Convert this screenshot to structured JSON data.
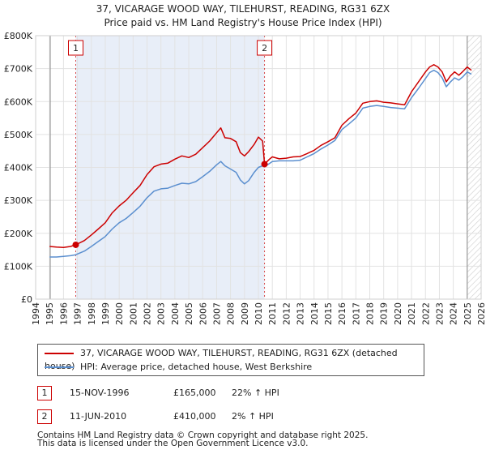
{
  "title_line1": "37, VICARAGE WOOD WAY, TILEHURST, READING, RG31 6ZX",
  "title_line2": "Price paid vs. HM Land Registry's House Price Index (HPI)",
  "chart_data": {
    "type": "line",
    "title": "37, VICARAGE WOOD WAY, TILEHURST, READING, RG31 6ZX — Price paid vs. HM Land Registry's House Price Index (HPI)",
    "xlabel": "",
    "ylabel": "",
    "xlim": [
      1994,
      2026
    ],
    "ylim": [
      0,
      800000
    ],
    "y_ticks": [
      0,
      100000,
      200000,
      300000,
      400000,
      500000,
      600000,
      700000,
      800000
    ],
    "y_tick_labels": [
      "£0",
      "£100K",
      "£200K",
      "£300K",
      "£400K",
      "£500K",
      "£600K",
      "£700K",
      "£800K"
    ],
    "x_ticks": [
      1994,
      1995,
      1996,
      1997,
      1998,
      1999,
      2000,
      2001,
      2002,
      2003,
      2004,
      2005,
      2006,
      2007,
      2008,
      2009,
      2010,
      2011,
      2012,
      2013,
      2014,
      2015,
      2016,
      2017,
      2018,
      2019,
      2020,
      2021,
      2022,
      2023,
      2024,
      2025,
      2026
    ],
    "grid": true,
    "legend_position": "below",
    "colors": {
      "property": "#cc0000",
      "hpi": "#5b8fcf",
      "highlight": "#e8eef8",
      "marker_line": "#cc0000"
    },
    "series": [
      {
        "name": "37, VICARAGE WOOD WAY, TILEHURST, READING, RG31 6ZX (detached house)",
        "x": [
          1995.0,
          1995.5,
          1996.0,
          1996.5,
          1996.88,
          1997.5,
          1998.0,
          1998.5,
          1999.0,
          1999.5,
          2000.0,
          2000.5,
          2001.0,
          2001.5,
          2002.0,
          2002.5,
          2003.0,
          2003.5,
          2004.0,
          2004.5,
          2005.0,
          2005.5,
          2006.0,
          2006.5,
          2007.0,
          2007.3,
          2007.6,
          2008.0,
          2008.4,
          2008.7,
          2009.0,
          2009.3,
          2009.7,
          2010.0,
          2010.3,
          2010.44,
          2010.8,
          2011.0,
          2011.5,
          2012.0,
          2012.5,
          2013.0,
          2013.5,
          2014.0,
          2014.5,
          2015.0,
          2015.5,
          2016.0,
          2016.5,
          2017.0,
          2017.5,
          2018.0,
          2018.5,
          2019.0,
          2019.5,
          2020.0,
          2020.5,
          2021.0,
          2021.5,
          2022.0,
          2022.3,
          2022.6,
          2022.9,
          2023.2,
          2023.5,
          2023.8,
          2024.1,
          2024.4,
          2024.7,
          2025.0,
          2025.3
        ],
        "values": [
          160000,
          158000,
          157000,
          160000,
          165000,
          178000,
          195000,
          213000,
          232000,
          262000,
          283000,
          300000,
          323000,
          345000,
          378000,
          402000,
          410000,
          413000,
          425000,
          435000,
          430000,
          440000,
          460000,
          480000,
          505000,
          520000,
          490000,
          488000,
          478000,
          445000,
          435000,
          448000,
          470000,
          492000,
          480000,
          410000,
          425000,
          432000,
          426000,
          428000,
          432000,
          433000,
          442000,
          452000,
          467000,
          478000,
          490000,
          528000,
          548000,
          565000,
          595000,
          600000,
          602000,
          598000,
          596000,
          593000,
          590000,
          630000,
          660000,
          690000,
          705000,
          712000,
          705000,
          690000,
          660000,
          678000,
          690000,
          680000,
          692000,
          705000,
          695000
        ]
      },
      {
        "name": "HPI: Average price, detached house, West Berkshire",
        "x": [
          1995.0,
          1995.5,
          1996.0,
          1996.5,
          1996.88,
          1997.5,
          1998.0,
          1998.5,
          1999.0,
          1999.5,
          2000.0,
          2000.5,
          2001.0,
          2001.5,
          2002.0,
          2002.5,
          2003.0,
          2003.5,
          2004.0,
          2004.5,
          2005.0,
          2005.5,
          2006.0,
          2006.5,
          2007.0,
          2007.3,
          2007.6,
          2008.0,
          2008.4,
          2008.7,
          2009.0,
          2009.3,
          2009.7,
          2010.0,
          2010.3,
          2010.44,
          2010.8,
          2011.0,
          2011.5,
          2012.0,
          2012.5,
          2013.0,
          2013.5,
          2014.0,
          2014.5,
          2015.0,
          2015.5,
          2016.0,
          2016.5,
          2017.0,
          2017.5,
          2018.0,
          2018.5,
          2019.0,
          2019.5,
          2020.0,
          2020.5,
          2021.0,
          2021.5,
          2022.0,
          2022.3,
          2022.6,
          2022.9,
          2023.2,
          2023.5,
          2023.8,
          2024.1,
          2024.4,
          2024.7,
          2025.0,
          2025.3
        ],
        "values": [
          128000,
          128000,
          130000,
          132000,
          135000,
          146000,
          160000,
          175000,
          190000,
          213000,
          232000,
          245000,
          263000,
          282000,
          308000,
          328000,
          335000,
          337000,
          345000,
          352000,
          350000,
          357000,
          372000,
          388000,
          408000,
          418000,
          405000,
          395000,
          385000,
          362000,
          350000,
          360000,
          385000,
          400000,
          405000,
          402000,
          412000,
          418000,
          420000,
          420000,
          420000,
          422000,
          432000,
          442000,
          456000,
          468000,
          482000,
          515000,
          532000,
          550000,
          580000,
          585000,
          588000,
          585000,
          582000,
          580000,
          578000,
          612000,
          640000,
          670000,
          688000,
          695000,
          688000,
          672000,
          645000,
          660000,
          672000,
          665000,
          676000,
          690000,
          683000
        ]
      }
    ],
    "sales": [
      {
        "label": "1",
        "x": 1996.88,
        "value": 165000
      },
      {
        "label": "2",
        "x": 2010.44,
        "value": 410000
      }
    ]
  },
  "legend": {
    "property_label": "37, VICARAGE WOOD WAY, TILEHURST, READING, RG31 6ZX (detached house)",
    "hpi_label": "HPI: Average price, detached house, West Berkshire"
  },
  "sales_table": [
    {
      "num": "1",
      "date": "15-NOV-1996",
      "price": "£165,000",
      "hpi": "22% ↑ HPI"
    },
    {
      "num": "2",
      "date": "11-JUN-2010",
      "price": "£410,000",
      "hpi": "2% ↑ HPI"
    }
  ],
  "footer_line1": "Contains HM Land Registry data © Crown copyright and database right 2025.",
  "footer_line2": "This data is licensed under the Open Government Licence v3.0."
}
